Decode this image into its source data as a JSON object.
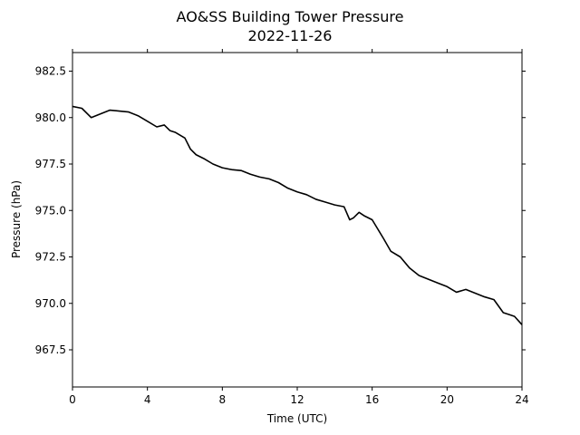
{
  "chart_data": {
    "type": "line",
    "title": "AO&SS Building Tower Pressure",
    "subtitle": "2022-11-26",
    "xlabel": "Time (UTC)",
    "ylabel": "Pressure (hPa)",
    "xlim": [
      0,
      24
    ],
    "ylim": [
      965.5,
      983.5
    ],
    "xticks": [
      0,
      4,
      8,
      12,
      16,
      20,
      24
    ],
    "xtick_labels": [
      "0",
      "4",
      "8",
      "12",
      "16",
      "20",
      "24"
    ],
    "yticks": [
      967.5,
      970.0,
      972.5,
      975.0,
      977.5,
      980.0,
      982.5
    ],
    "ytick_labels": [
      "967.5",
      "970.0",
      "972.5",
      "975.0",
      "977.5",
      "980.0",
      "982.5"
    ],
    "grid": false,
    "line_color": "#000000",
    "series": [
      {
        "x": [
          0,
          0.5,
          1.0,
          1.5,
          2.0,
          2.5,
          3.0,
          3.5,
          4.0,
          4.5,
          4.9,
          5.2,
          5.5,
          6.0,
          6.3,
          6.6,
          7.0,
          7.5,
          8.0,
          8.5,
          9.0,
          9.5,
          10.0,
          10.5,
          11.0,
          11.5,
          12.0,
          12.5,
          13.0,
          13.5,
          14.0,
          14.5,
          14.8,
          15.0,
          15.3,
          15.6,
          16.0,
          16.3,
          16.6,
          17.0,
          17.5,
          18.0,
          18.5,
          19.0,
          19.5,
          20.0,
          20.5,
          21.0,
          21.5,
          22.0,
          22.5,
          23.0,
          23.3,
          23.6,
          24.0
        ],
        "y": [
          980.6,
          980.5,
          980.0,
          980.2,
          980.4,
          980.35,
          980.3,
          980.1,
          979.8,
          979.5,
          979.6,
          979.3,
          979.2,
          978.9,
          978.3,
          978.0,
          977.8,
          977.5,
          977.3,
          977.2,
          977.15,
          976.95,
          976.8,
          976.7,
          976.5,
          976.2,
          976.0,
          975.85,
          975.6,
          975.45,
          975.3,
          975.2,
          974.5,
          974.6,
          974.9,
          974.7,
          974.5,
          974.0,
          973.5,
          972.8,
          972.5,
          971.9,
          971.5,
          971.3,
          971.1,
          970.9,
          970.6,
          970.75,
          970.55,
          970.35,
          970.2,
          969.5,
          969.4,
          969.3,
          968.85
        ]
      }
    ]
  }
}
